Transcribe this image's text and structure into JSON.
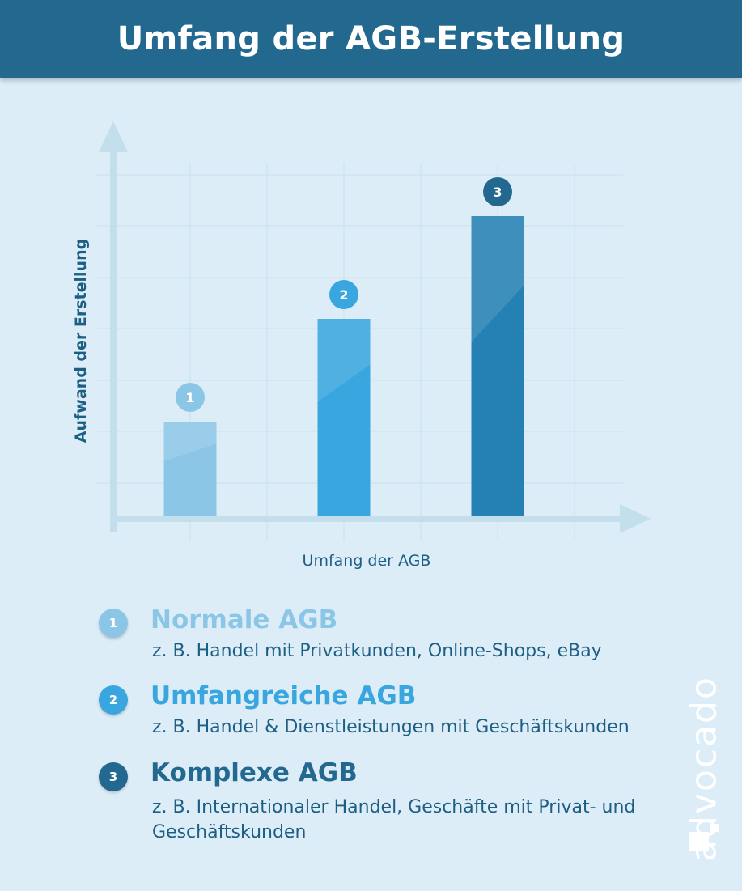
{
  "header": {
    "title": "Umfang der AGB-Erstellung"
  },
  "colors": {
    "header_bg": "#23688f",
    "background": "#dcedf7",
    "axis": "#c3dfec",
    "grid": "#c9e1ee",
    "axis_label": "#1d5f84",
    "series": [
      "#8cc6e7",
      "#39a6df",
      "#2580b3"
    ]
  },
  "chart_data": {
    "type": "bar",
    "categories": [
      "1",
      "2",
      "3"
    ],
    "values": [
      2,
      4,
      6
    ],
    "xlabel": "Umfang der AGB",
    "ylabel": "Aufwand der Erstellung",
    "ylim": [
      0,
      9
    ],
    "grid": true,
    "x_axis_arrow": true,
    "y_axis_arrow": true
  },
  "legend": [
    {
      "number": "1",
      "title": "Normale AGB",
      "desc": "z. B. Handel mit Privatkunden, Online-Shops, eBay"
    },
    {
      "number": "2",
      "title": "Umfangreiche AGB",
      "desc": "z. B. Handel & Dienstleistungen mit Geschäftskunden"
    },
    {
      "number": "3",
      "title": "Komplexe AGB",
      "desc": "z. B. Internationaler Handel, Geschäfte mit Privat- und Geschäftskunden"
    }
  ],
  "brand": {
    "name": "advocado",
    "icon": "advocado-logo-icon"
  }
}
